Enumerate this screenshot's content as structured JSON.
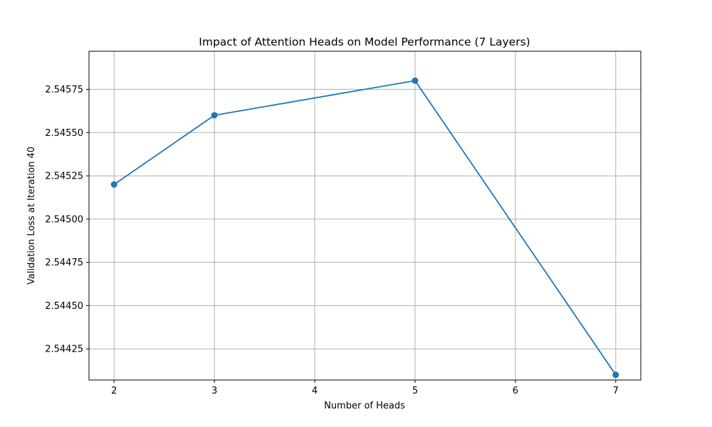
{
  "chart_data": {
    "type": "line",
    "title": "Impact of Attention Heads on Model Performance (7 Layers)",
    "xlabel": "Number of Heads",
    "ylabel": "Validation Loss at Iteration 40",
    "x": [
      2,
      3,
      5,
      7
    ],
    "series": [
      {
        "values": [
          2.5452,
          2.5456,
          2.5458,
          2.5441
        ]
      }
    ],
    "xticks": [
      2,
      3,
      4,
      5,
      6,
      7
    ],
    "xtick_labels": [
      "2",
      "3",
      "4",
      "5",
      "6",
      "7"
    ],
    "yticks": [
      2.54425,
      2.5445,
      2.54475,
      2.545,
      2.54525,
      2.5455,
      2.54575
    ],
    "ytick_labels": [
      "2.54425",
      "2.54450",
      "2.54475",
      "2.54500",
      "2.54525",
      "2.54550",
      "2.54575"
    ],
    "xlim": [
      1.75,
      7.25
    ],
    "ylim": [
      2.54407,
      2.54597
    ],
    "grid": true,
    "color": "#1f77b4"
  }
}
